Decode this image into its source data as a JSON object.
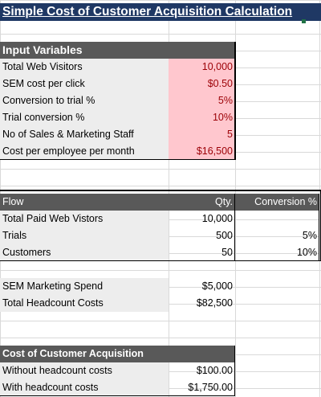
{
  "title": "Simple Cost of Customer Acquisition Calculation",
  "input_section": {
    "header": "Input Variables",
    "rows": [
      {
        "label": "Total Web Visitors",
        "value": "10,000"
      },
      {
        "label": "SEM cost per click",
        "value": "$0.50"
      },
      {
        "label": "Conversion to trial %",
        "value": "5%"
      },
      {
        "label": "Trial conversion %",
        "value": "10%"
      },
      {
        "label": "No of Sales & Marketing Staff",
        "value": "5"
      },
      {
        "label": "Cost per employee per month",
        "value": "$16,500"
      }
    ]
  },
  "flow_section": {
    "header": "Flow",
    "qty_header": "Qty.",
    "conversion_header": "Conversion %",
    "rows": [
      {
        "label": "Total Paid Web Vistors",
        "qty": "10,000",
        "conversion": ""
      },
      {
        "label": "Trials",
        "qty": "500",
        "conversion": "5%"
      },
      {
        "label": "Customers",
        "qty": "50",
        "conversion": "10%"
      }
    ]
  },
  "costs_section": {
    "rows": [
      {
        "label": "SEM Marketing Spend",
        "value": "$5,000"
      },
      {
        "label": "Total Headcount Costs",
        "value": "$82,500"
      }
    ]
  },
  "cac_section": {
    "header": "Cost of Customer Acquisition",
    "rows": [
      {
        "label": "Without headcount costs",
        "value": "$100.00"
      },
      {
        "label": "With headcount costs",
        "value": "$1,750.00"
      }
    ]
  },
  "colors": {
    "title_bg": "#1f3864",
    "header_bg": "#595959",
    "input_value_bg": "#ffc7ce",
    "input_value_text": "#9c0006",
    "row_shade": "#ededed"
  }
}
